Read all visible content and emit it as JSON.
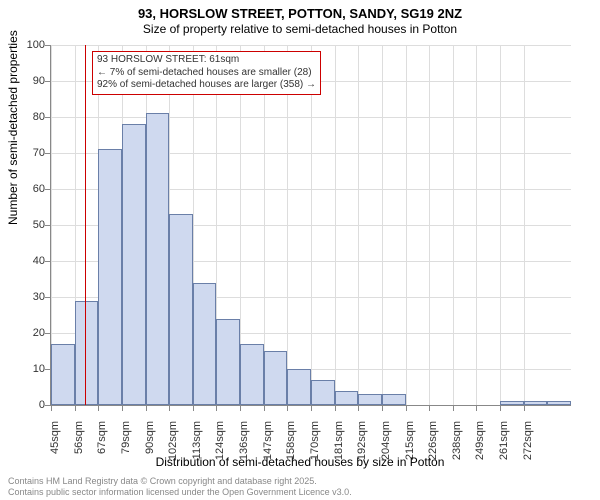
{
  "title_line1": "93, HORSLOW STREET, POTTON, SANDY, SG19 2NZ",
  "title_line2": "Size of property relative to semi-detached houses in Potton",
  "y_axis_title": "Number of semi-detached properties",
  "x_axis_title": "Distribution of semi-detached houses by size in Potton",
  "footer_line1": "Contains HM Land Registry data © Crown copyright and database right 2025.",
  "footer_line2": "Contains public sector information licensed under the Open Government Licence v3.0.",
  "callout": {
    "line1": "93 HORSLOW STREET: 61sqm",
    "line2": "← 7% of semi-detached houses are smaller (28)",
    "line3": "92% of semi-detached houses are larger (358) →"
  },
  "chart": {
    "type": "histogram",
    "ylim": [
      0,
      100
    ],
    "ytick_step": 10,
    "bar_fill": "#cfd9ef",
    "bar_stroke": "#6a7fa8",
    "grid_color": "#dddddd",
    "background_color": "#ffffff",
    "marker_color": "#cc0000",
    "marker_x_value": 61,
    "x_start": 45,
    "x_step": 11,
    "bin_count": 22,
    "x_labels": [
      "45sqm",
      "56sqm",
      "67sqm",
      "79sqm",
      "90sqm",
      "102sqm",
      "113sqm",
      "124sqm",
      "136sqm",
      "147sqm",
      "158sqm",
      "170sqm",
      "181sqm",
      "192sqm",
      "204sqm",
      "215sqm",
      "226sqm",
      "238sqm",
      "249sqm",
      "261sqm",
      "272sqm"
    ],
    "bars": [
      17,
      29,
      71,
      78,
      81,
      53,
      34,
      24,
      17,
      15,
      10,
      7,
      4,
      3,
      3,
      0,
      0,
      0,
      0,
      1,
      1,
      1
    ],
    "title_fontsize": 13,
    "subtitle_fontsize": 12,
    "axis_label_fontsize": 12,
    "tick_fontsize": 11,
    "callout_fontsize": 10,
    "footer_fontsize": 9
  }
}
